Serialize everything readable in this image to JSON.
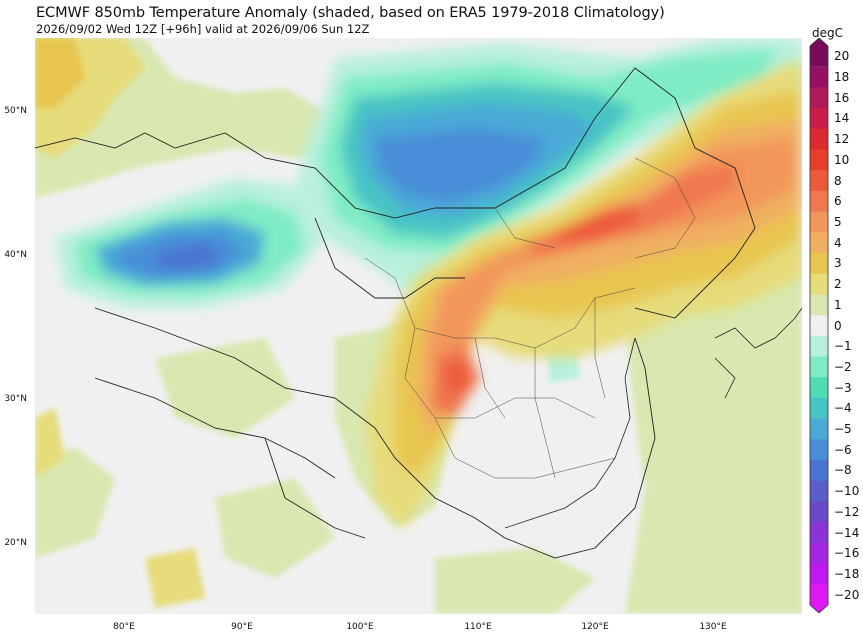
{
  "header": {
    "title": "ECMWF 850mb Temperature Anomaly (shaded, based on ERA5 1979-2018 Climatology)",
    "subtitle": "2026/09/02 Wed 12Z [+96h] valid at 2026/09/06 Sun 12Z"
  },
  "map": {
    "lat_labels": [
      "50°N",
      "40°N",
      "30°N",
      "20°N"
    ],
    "lon_labels": [
      "80°E",
      "90°E",
      "100°E",
      "110°E",
      "120°E",
      "130°E"
    ]
  },
  "colorbar": {
    "unit": "degC",
    "levels": [
      {
        "label": "20",
        "color": "#7a0a5a"
      },
      {
        "label": "18",
        "color": "#951060"
      },
      {
        "label": "16",
        "color": "#b01a5a"
      },
      {
        "label": "14",
        "color": "#c81e48"
      },
      {
        "label": "12",
        "color": "#dc2a30"
      },
      {
        "label": "10",
        "color": "#e6402c"
      },
      {
        "label": "8",
        "color": "#ec5a3a"
      },
      {
        "label": "6",
        "color": "#f07850"
      },
      {
        "label": "5",
        "color": "#f2965a"
      },
      {
        "label": "4",
        "color": "#f0b060"
      },
      {
        "label": "3",
        "color": "#e8c650"
      },
      {
        "label": "2",
        "color": "#e6dc7a"
      },
      {
        "label": "1",
        "color": "#d8e8b0"
      },
      {
        "label": "0",
        "color": "#f0f0f0"
      },
      {
        "label": "−1",
        "color": "#b8f0dc"
      },
      {
        "label": "−2",
        "color": "#7eecc4"
      },
      {
        "label": "−3",
        "color": "#4edcb4"
      },
      {
        "label": "−4",
        "color": "#48c4c4"
      },
      {
        "label": "−5",
        "color": "#4aaad6"
      },
      {
        "label": "−6",
        "color": "#4a8ed8"
      },
      {
        "label": "−8",
        "color": "#4a74d0"
      },
      {
        "label": "−10",
        "color": "#5a5ec8"
      },
      {
        "label": "−12",
        "color": "#6a48c8"
      },
      {
        "label": "−14",
        "color": "#8a34d8"
      },
      {
        "label": "−16",
        "color": "#a624e4"
      },
      {
        "label": "−18",
        "color": "#c018ee"
      },
      {
        "label": "−20",
        "color": "#dc18f4"
      }
    ]
  }
}
